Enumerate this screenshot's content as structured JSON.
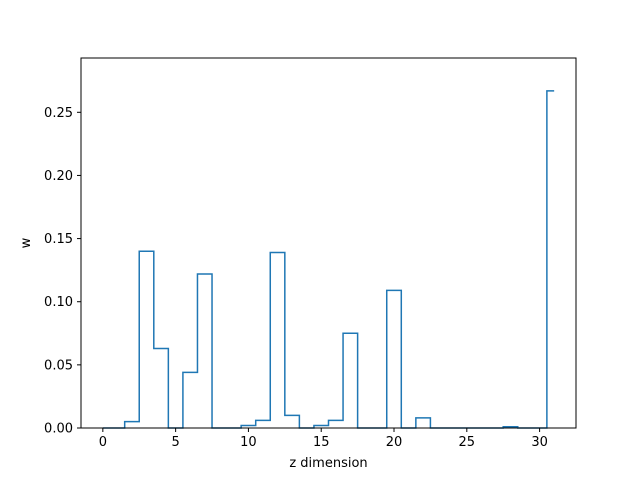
{
  "chart_data": {
    "type": "line",
    "drawstyle": "steps-mid",
    "title": "",
    "xlabel": "z dimension",
    "ylabel": "w",
    "xlim": [
      -1.5,
      32.5
    ],
    "ylim": [
      0.0,
      0.293
    ],
    "xticks": [
      0,
      5,
      10,
      15,
      20,
      25,
      30
    ],
    "xtick_labels": [
      "0",
      "5",
      "10",
      "15",
      "20",
      "25",
      "30"
    ],
    "yticks": [
      0.0,
      0.05,
      0.1,
      0.15,
      0.2,
      0.25
    ],
    "ytick_labels": [
      "0.00",
      "0.05",
      "0.10",
      "0.15",
      "0.20",
      "0.25"
    ],
    "grid": false,
    "legend": "none",
    "series": [
      {
        "color": "#1f77b4",
        "x": [
          0,
          1,
          2,
          3,
          4,
          5,
          6,
          7,
          8,
          9,
          10,
          11,
          12,
          13,
          14,
          15,
          16,
          17,
          18,
          19,
          20,
          21,
          22,
          23,
          24,
          25,
          26,
          27,
          28,
          29,
          30,
          31
        ],
        "values": [
          0.0,
          0.0,
          0.005,
          0.14,
          0.063,
          0.0,
          0.044,
          0.122,
          0.0,
          0.0,
          0.002,
          0.006,
          0.139,
          0.01,
          0.0,
          0.002,
          0.006,
          0.075,
          0.0,
          0.0,
          0.109,
          0.0,
          0.008,
          0.0,
          0.0,
          0.0,
          0.0,
          0.0,
          0.001,
          0.0,
          0.0,
          0.267
        ]
      }
    ]
  }
}
